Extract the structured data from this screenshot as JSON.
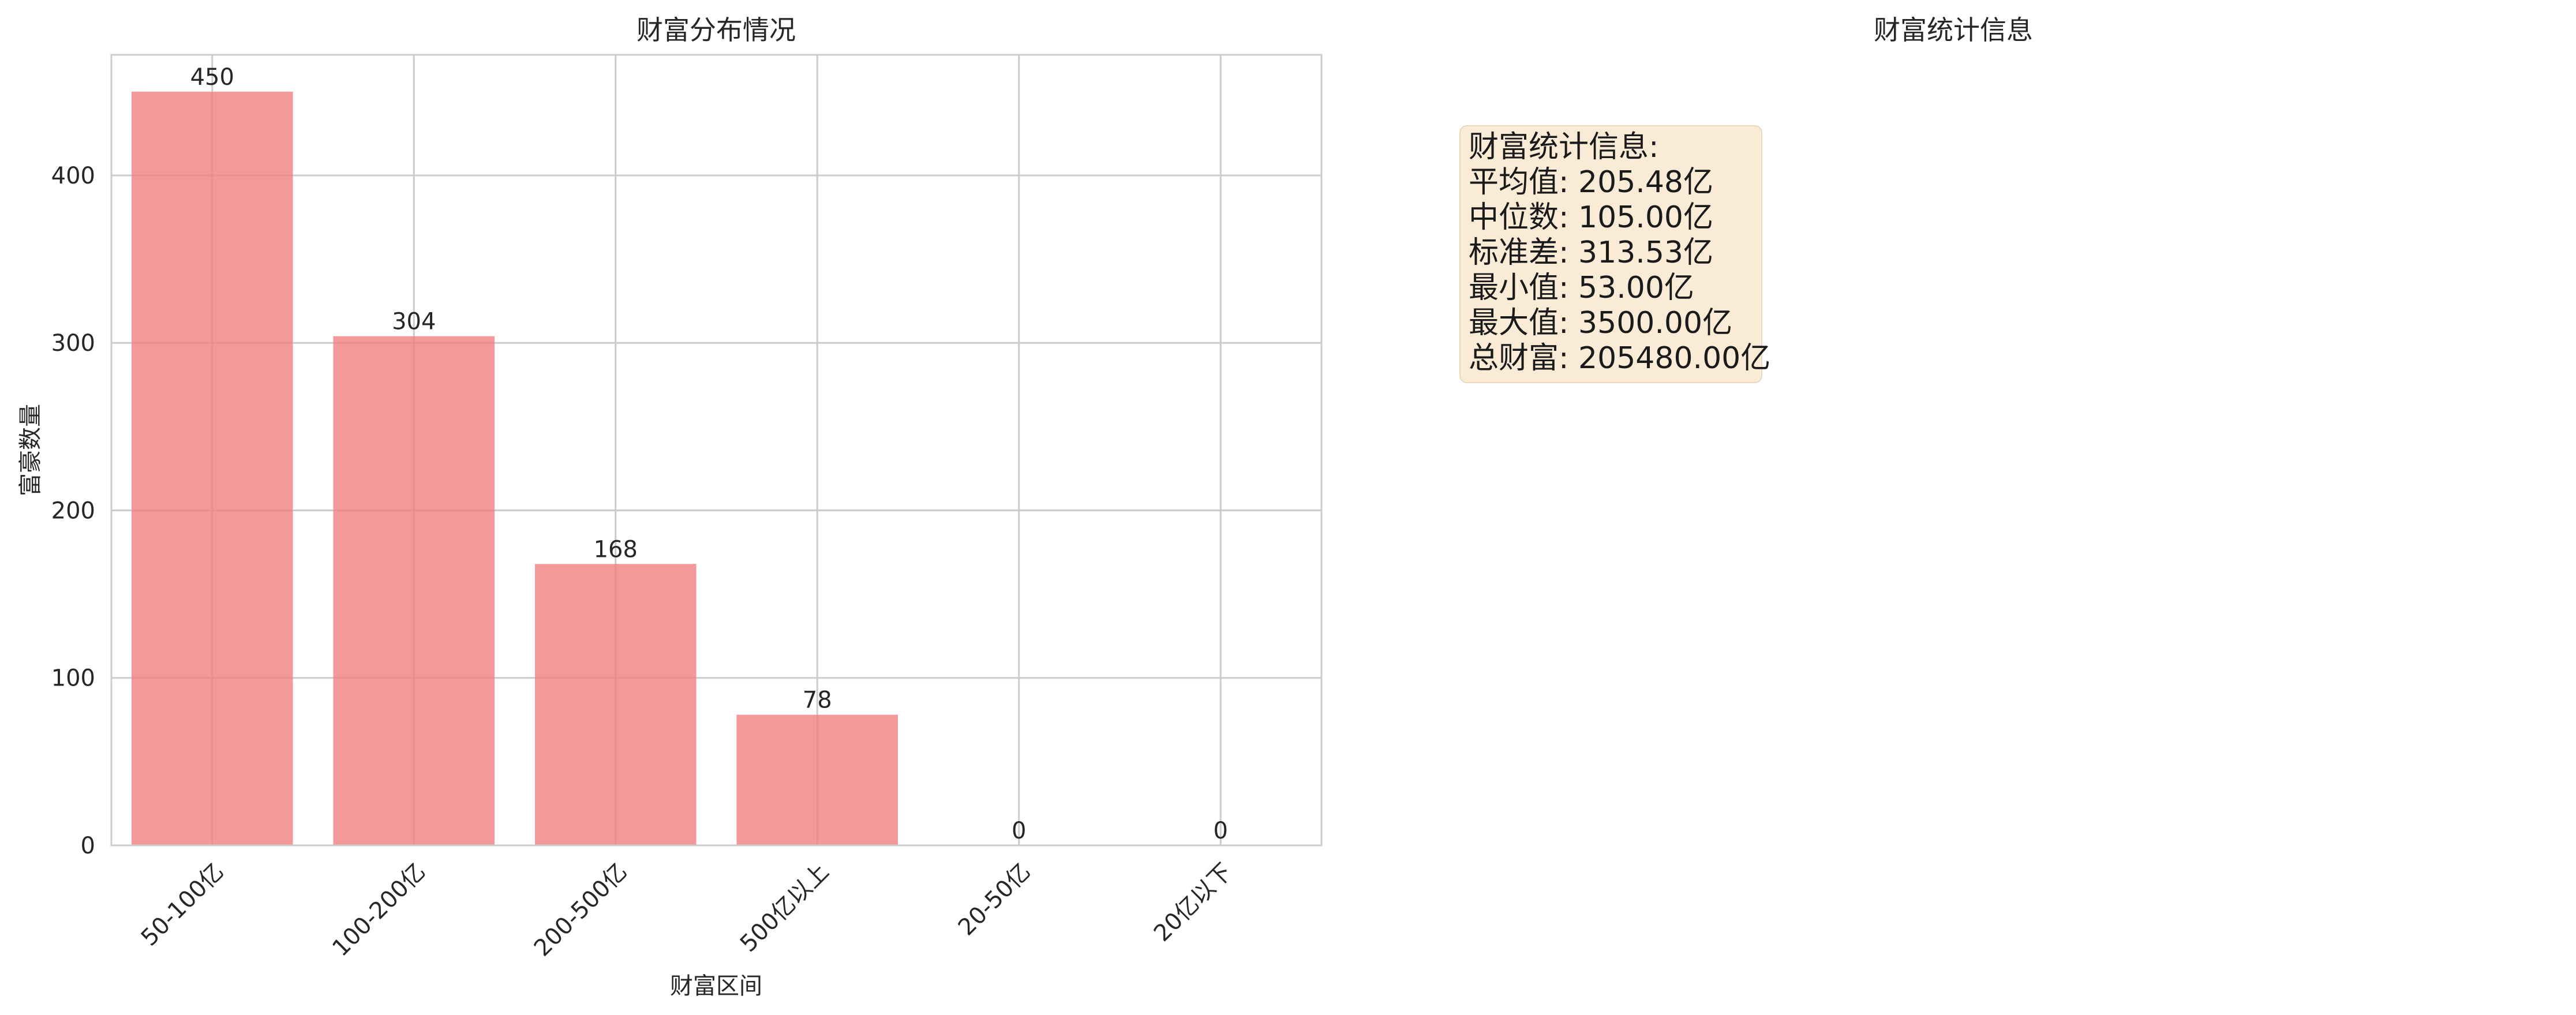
{
  "colors": {
    "bar_fill": "#f08080",
    "grid": "#cccccc",
    "frame": "#cccccc",
    "stats_box_bg": "#faebd7",
    "stats_box_border": "#d9c7a8"
  },
  "chart_data": {
    "type": "bar",
    "title": "财富分布情况",
    "xlabel": "财富区间",
    "ylabel": "富豪数量",
    "categories": [
      "50-100亿",
      "100-200亿",
      "200-500亿",
      "500亿以上",
      "20-50亿",
      "20亿以下"
    ],
    "values": [
      450,
      304,
      168,
      78,
      0,
      0
    ],
    "data_labels": [
      "450",
      "304",
      "168",
      "78",
      "0",
      "0"
    ],
    "ylim": [
      0,
      472
    ],
    "yticks": [
      0,
      100,
      200,
      300,
      400
    ],
    "ytick_labels": [
      "0",
      "100",
      "200",
      "300",
      "400"
    ],
    "grid": true,
    "bar_alpha": 0.8
  },
  "stats_panel": {
    "title": "财富统计信息",
    "box_lines": [
      "财富统计信息:",
      "平均值: 205.48亿",
      "中位数: 105.00亿",
      "标准差: 313.53亿",
      "最小值: 53.00亿",
      "最大值: 3500.00亿",
      "总财富: 205480.00亿"
    ]
  }
}
